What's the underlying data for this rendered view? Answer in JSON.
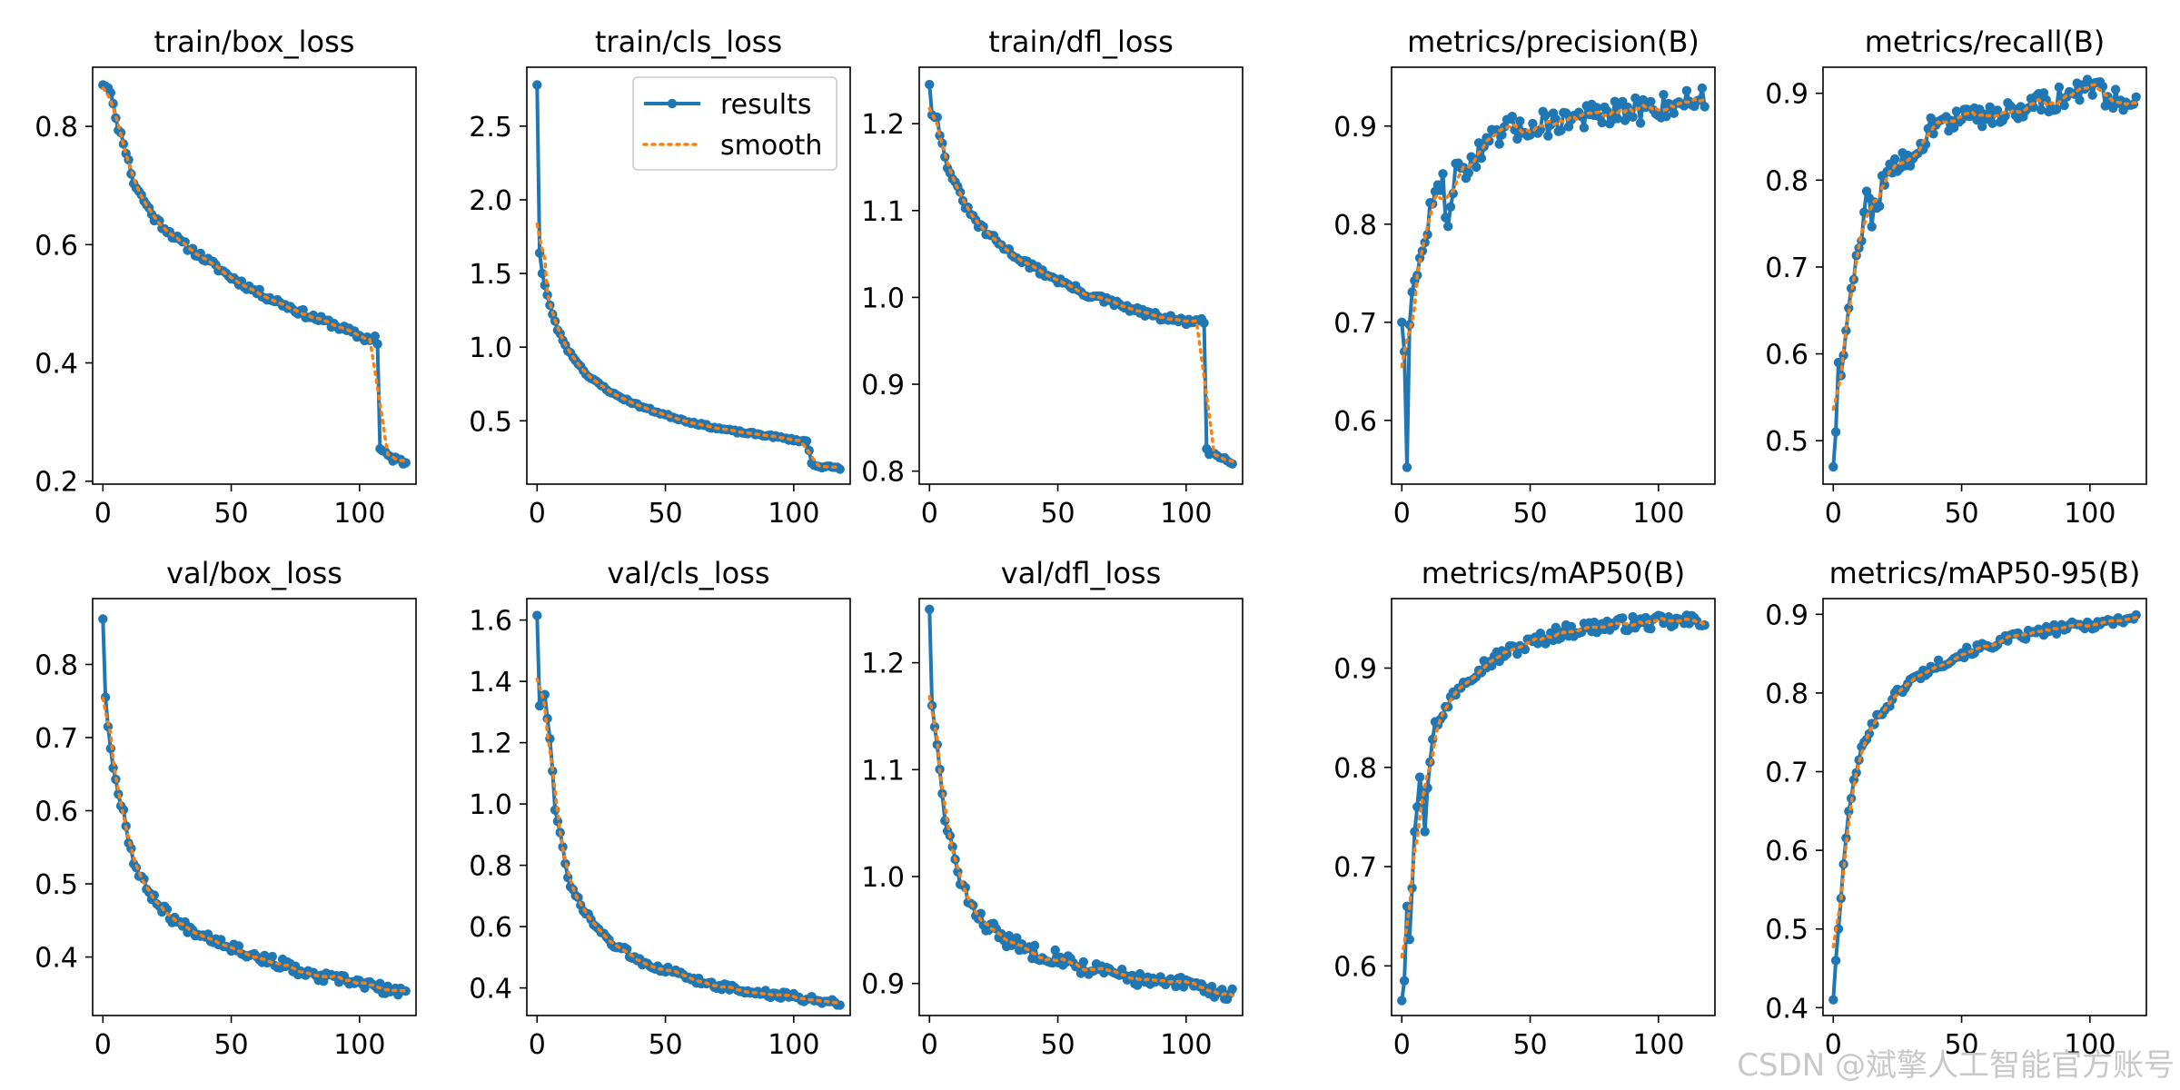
{
  "figure": {
    "colors": {
      "results": "#1f77b4",
      "smooth": "#ff7f0e",
      "axis": "#000000"
    },
    "legend": {
      "results_label": "results",
      "smooth_label": "smooth",
      "panel": "train/cls_loss",
      "placement": "upper-right"
    }
  },
  "watermark": "CSDN @斌擎人工智能官方账号",
  "chart_data": [
    {
      "type": "line",
      "title": "train/box_loss",
      "xlim": [
        -4,
        122
      ],
      "ylim": [
        0.195,
        0.9
      ],
      "xticks": [
        0,
        50,
        100
      ],
      "yticks": [
        0.2,
        0.4,
        0.6,
        0.8
      ],
      "ytick_labels": [
        "0.2",
        "0.4",
        "0.6",
        "0.8"
      ],
      "x_anchors": [
        0,
        1,
        3,
        5,
        8,
        12,
        20,
        30,
        40,
        50,
        60,
        70,
        80,
        90,
        100,
        104,
        106,
        107,
        108,
        110,
        115,
        118
      ],
      "y_anchors": [
        0.87,
        0.868,
        0.862,
        0.81,
        0.775,
        0.705,
        0.645,
        0.605,
        0.575,
        0.545,
        0.52,
        0.5,
        0.48,
        0.465,
        0.445,
        0.44,
        0.445,
        0.43,
        0.255,
        0.245,
        0.235,
        0.232
      ],
      "noise": 0.006,
      "seed": 11
    },
    {
      "type": "line",
      "title": "train/cls_loss",
      "xlim": [
        -4,
        122
      ],
      "ylim": [
        0.07,
        2.9
      ],
      "xticks": [
        0,
        50,
        100
      ],
      "yticks": [
        0.5,
        1.0,
        1.5,
        2.0,
        2.5
      ],
      "ytick_labels": [
        "0.5",
        "1.0",
        "1.5",
        "2.0",
        "2.5"
      ],
      "x_anchors": [
        0,
        1,
        2,
        3,
        5,
        8,
        12,
        20,
        30,
        40,
        50,
        60,
        70,
        80,
        90,
        100,
        105,
        106,
        107,
        110,
        118
      ],
      "y_anchors": [
        2.78,
        1.64,
        1.5,
        1.42,
        1.28,
        1.12,
        0.98,
        0.8,
        0.68,
        0.6,
        0.54,
        0.49,
        0.45,
        0.42,
        0.4,
        0.37,
        0.36,
        0.3,
        0.21,
        0.19,
        0.18
      ],
      "noise": 0.008,
      "seed": 23
    },
    {
      "type": "line",
      "title": "train/dfl_loss",
      "xlim": [
        -4,
        122
      ],
      "ylim": [
        0.785,
        1.265
      ],
      "xticks": [
        0,
        50,
        100
      ],
      "yticks": [
        0.8,
        0.9,
        1.0,
        1.1,
        1.2
      ],
      "ytick_labels": [
        "0.8",
        "0.9",
        "1.0",
        "1.1",
        "1.2"
      ],
      "x_anchors": [
        0,
        1,
        3,
        6,
        10,
        15,
        20,
        30,
        40,
        50,
        60,
        70,
        80,
        90,
        100,
        105,
        107,
        108,
        110,
        115,
        118
      ],
      "y_anchors": [
        1.245,
        1.21,
        1.205,
        1.16,
        1.13,
        1.1,
        1.08,
        1.055,
        1.035,
        1.02,
        1.005,
        0.995,
        0.985,
        0.977,
        0.972,
        0.973,
        0.97,
        0.822,
        0.82,
        0.815,
        0.812
      ],
      "noise": 0.004,
      "seed": 31
    },
    {
      "type": "line",
      "title": "metrics/precision(B)",
      "xlim": [
        -4,
        122
      ],
      "ylim": [
        0.535,
        0.96
      ],
      "xticks": [
        0,
        50,
        100
      ],
      "yticks": [
        0.6,
        0.7,
        0.8,
        0.9
      ],
      "ytick_labels": [
        "0.6",
        "0.7",
        "0.8",
        "0.9"
      ],
      "x_anchors": [
        0,
        1,
        2,
        3,
        4,
        6,
        8,
        10,
        13,
        16,
        18,
        20,
        25,
        30,
        40,
        50,
        60,
        70,
        80,
        90,
        100,
        110,
        118
      ],
      "y_anchors": [
        0.7,
        0.67,
        0.552,
        0.7,
        0.725,
        0.745,
        0.775,
        0.8,
        0.83,
        0.84,
        0.8,
        0.845,
        0.86,
        0.87,
        0.895,
        0.9,
        0.905,
        0.91,
        0.91,
        0.915,
        0.92,
        0.925,
        0.93
      ],
      "noise": 0.014,
      "seed": 47
    },
    {
      "type": "line",
      "title": "metrics/recall(B)",
      "xlim": [
        -4,
        122
      ],
      "ylim": [
        0.45,
        0.93
      ],
      "xticks": [
        0,
        50,
        100
      ],
      "yticks": [
        0.5,
        0.6,
        0.7,
        0.8,
        0.9
      ],
      "ytick_labels": [
        "0.5",
        "0.6",
        "0.7",
        "0.8",
        "0.9"
      ],
      "x_anchors": [
        0,
        1,
        2,
        3,
        5,
        7,
        9,
        11,
        13,
        15,
        20,
        25,
        30,
        40,
        50,
        60,
        70,
        80,
        90,
        100,
        110,
        118
      ],
      "y_anchors": [
        0.47,
        0.51,
        0.59,
        0.565,
        0.62,
        0.67,
        0.7,
        0.74,
        0.8,
        0.76,
        0.8,
        0.815,
        0.83,
        0.865,
        0.87,
        0.875,
        0.88,
        0.89,
        0.895,
        0.905,
        0.895,
        0.89
      ],
      "noise": 0.014,
      "seed": 59
    },
    {
      "type": "line",
      "title": "val/box_loss",
      "xlim": [
        -4,
        122
      ],
      "ylim": [
        0.32,
        0.89
      ],
      "xticks": [
        0,
        50,
        100
      ],
      "yticks": [
        0.4,
        0.5,
        0.6,
        0.7,
        0.8
      ],
      "ytick_labels": [
        "0.4",
        "0.5",
        "0.6",
        "0.7",
        "0.8"
      ],
      "x_anchors": [
        0,
        1,
        2,
        3,
        5,
        8,
        10,
        13,
        16,
        20,
        25,
        30,
        40,
        50,
        60,
        70,
        80,
        90,
        100,
        110,
        118
      ],
      "y_anchors": [
        0.862,
        0.755,
        0.715,
        0.69,
        0.64,
        0.6,
        0.56,
        0.52,
        0.5,
        0.48,
        0.46,
        0.445,
        0.43,
        0.415,
        0.4,
        0.39,
        0.375,
        0.37,
        0.365,
        0.355,
        0.35
      ],
      "noise": 0.007,
      "seed": 67
    },
    {
      "type": "line",
      "title": "val/cls_loss",
      "xlim": [
        -4,
        122
      ],
      "ylim": [
        0.31,
        1.67
      ],
      "xticks": [
        0,
        50,
        100
      ],
      "yticks": [
        0.4,
        0.6,
        0.8,
        1.0,
        1.2,
        1.4,
        1.6
      ],
      "ytick_labels": [
        "0.4",
        "0.6",
        "0.8",
        "1.0",
        "1.2",
        "1.4",
        "1.6"
      ],
      "x_anchors": [
        0,
        1,
        3,
        5,
        7,
        9,
        12,
        15,
        20,
        25,
        30,
        40,
        50,
        60,
        70,
        80,
        90,
        100,
        110,
        118
      ],
      "y_anchors": [
        1.615,
        1.32,
        1.36,
        1.22,
        0.98,
        0.9,
        0.75,
        0.7,
        0.63,
        0.58,
        0.54,
        0.49,
        0.46,
        0.43,
        0.41,
        0.39,
        0.38,
        0.37,
        0.36,
        0.355
      ],
      "noise": 0.012,
      "seed": 73
    },
    {
      "type": "line",
      "title": "val/dfl_loss",
      "xlim": [
        -4,
        122
      ],
      "ylim": [
        0.87,
        1.26
      ],
      "xticks": [
        0,
        50,
        100
      ],
      "yticks": [
        0.9,
        1.0,
        1.1,
        1.2
      ],
      "ytick_labels": [
        "0.9",
        "1.0",
        "1.1",
        "1.2"
      ],
      "x_anchors": [
        0,
        1,
        3,
        5,
        7,
        9,
        12,
        15,
        20,
        25,
        30,
        40,
        50,
        60,
        70,
        80,
        90,
        100,
        110,
        118
      ],
      "y_anchors": [
        1.25,
        1.16,
        1.12,
        1.075,
        1.04,
        1.03,
        0.99,
        0.98,
        0.96,
        0.95,
        0.94,
        0.93,
        0.925,
        0.915,
        0.91,
        0.905,
        0.9,
        0.9,
        0.893,
        0.89
      ],
      "noise": 0.007,
      "seed": 83
    },
    {
      "type": "line",
      "title": "metrics/mAP50(B)",
      "xlim": [
        -4,
        122
      ],
      "ylim": [
        0.55,
        0.97
      ],
      "xticks": [
        0,
        50,
        100
      ],
      "yticks": [
        0.6,
        0.7,
        0.8,
        0.9
      ],
      "ytick_labels": [
        "0.6",
        "0.7",
        "0.8",
        "0.9"
      ],
      "x_anchors": [
        0,
        1,
        2,
        3,
        5,
        7,
        9,
        11,
        13,
        15,
        20,
        25,
        30,
        40,
        50,
        60,
        70,
        80,
        90,
        100,
        110,
        118
      ],
      "y_anchors": [
        0.565,
        0.585,
        0.66,
        0.63,
        0.74,
        0.79,
        0.74,
        0.81,
        0.85,
        0.845,
        0.875,
        0.89,
        0.9,
        0.915,
        0.925,
        0.935,
        0.94,
        0.943,
        0.945,
        0.946,
        0.947,
        0.948
      ],
      "noise": 0.007,
      "seed": 97
    },
    {
      "type": "line",
      "title": "metrics/mAP50-95(B)",
      "xlim": [
        -4,
        122
      ],
      "ylim": [
        0.39,
        0.92
      ],
      "xticks": [
        0,
        50,
        100
      ],
      "yticks": [
        0.4,
        0.5,
        0.6,
        0.7,
        0.8,
        0.9
      ],
      "ytick_labels": [
        "0.4",
        "0.5",
        "0.6",
        "0.7",
        "0.8",
        "0.9"
      ],
      "x_anchors": [
        0,
        1,
        3,
        5,
        7,
        9,
        12,
        15,
        20,
        25,
        30,
        40,
        50,
        60,
        70,
        80,
        90,
        100,
        110,
        118
      ],
      "y_anchors": [
        0.41,
        0.46,
        0.54,
        0.62,
        0.67,
        0.7,
        0.74,
        0.76,
        0.78,
        0.8,
        0.815,
        0.835,
        0.85,
        0.86,
        0.87,
        0.877,
        0.883,
        0.887,
        0.892,
        0.897
      ],
      "noise": 0.006,
      "seed": 101
    }
  ]
}
